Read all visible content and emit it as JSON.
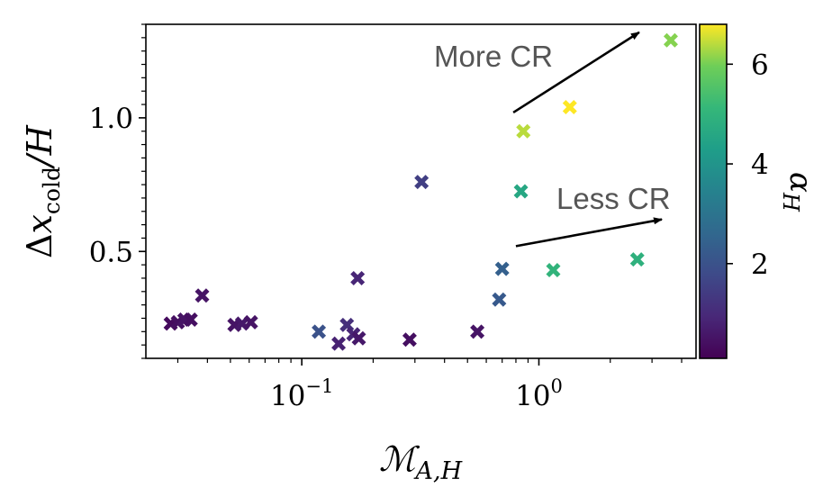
{
  "chart_data": {
    "type": "scatter",
    "title": "",
    "xlabel": "ℳ_{A,H}",
    "xlabel_main": "ℳ",
    "xlabel_sub": "A,H",
    "ylabel": "Δx_cold/H",
    "ylabel_parts": {
      "delta": "Δ",
      "x": "x",
      "sub": "cold",
      "tail": "/H"
    },
    "xscale": "log",
    "xlim": [
      0.022,
      4.6
    ],
    "ylim": [
      0.1,
      1.35
    ],
    "x_ticks": [
      {
        "value": 0.1,
        "base": "10",
        "exp": "−1"
      },
      {
        "value": 1,
        "base": "10",
        "exp": "0"
      }
    ],
    "y_ticks": [
      {
        "value": 0.5,
        "label": "0.5"
      },
      {
        "value": 1.0,
        "label": "1.0"
      }
    ],
    "colorbar": {
      "label": "α_H",
      "label_main": "α",
      "label_sub": "H",
      "range": [
        0.1,
        6.8
      ],
      "ticks": [
        {
          "value": 2,
          "label": "2"
        },
        {
          "value": 4,
          "label": "4"
        },
        {
          "value": 6,
          "label": "6"
        }
      ],
      "colormap": "viridis"
    },
    "marker": "X",
    "points": [
      {
        "x": 0.028,
        "y": 0.23,
        "c": 0.3
      },
      {
        "x": 0.03,
        "y": 0.235,
        "c": 0.4
      },
      {
        "x": 0.032,
        "y": 0.245,
        "c": 0.5
      },
      {
        "x": 0.034,
        "y": 0.245,
        "c": 0.4
      },
      {
        "x": 0.038,
        "y": 0.335,
        "c": 0.5
      },
      {
        "x": 0.052,
        "y": 0.225,
        "c": 0.5
      },
      {
        "x": 0.056,
        "y": 0.23,
        "c": 0.6
      },
      {
        "x": 0.061,
        "y": 0.235,
        "c": 0.5
      },
      {
        "x": 0.118,
        "y": 0.2,
        "c": 2.0
      },
      {
        "x": 0.143,
        "y": 0.155,
        "c": 0.8
      },
      {
        "x": 0.155,
        "y": 0.225,
        "c": 1.1
      },
      {
        "x": 0.165,
        "y": 0.19,
        "c": 0.9
      },
      {
        "x": 0.172,
        "y": 0.4,
        "c": 0.9
      },
      {
        "x": 0.174,
        "y": 0.175,
        "c": 0.6
      },
      {
        "x": 0.285,
        "y": 0.17,
        "c": 0.4
      },
      {
        "x": 0.32,
        "y": 0.76,
        "c": 1.5
      },
      {
        "x": 0.55,
        "y": 0.2,
        "c": 0.5
      },
      {
        "x": 0.68,
        "y": 0.32,
        "c": 2.2
      },
      {
        "x": 0.7,
        "y": 0.435,
        "c": 2.4
      },
      {
        "x": 0.84,
        "y": 0.725,
        "c": 4.6
      },
      {
        "x": 0.86,
        "y": 0.95,
        "c": 6.4
      },
      {
        "x": 1.15,
        "y": 0.43,
        "c": 5.0
      },
      {
        "x": 1.35,
        "y": 1.04,
        "c": 6.8
      },
      {
        "x": 2.6,
        "y": 0.47,
        "c": 4.9
      },
      {
        "x": 3.6,
        "y": 1.29,
        "c": 6.1
      }
    ],
    "annotations": [
      {
        "text": "More CR",
        "arrow": {
          "x_start": 0.78,
          "y_start": 1.02,
          "x_end": 2.65,
          "y_end": 1.32
        }
      },
      {
        "text": "Less CR",
        "arrow": {
          "x_start": 0.8,
          "y_start": 0.52,
          "x_end": 3.3,
          "y_end": 0.62
        }
      }
    ],
    "legend": "none",
    "grid": false
  }
}
